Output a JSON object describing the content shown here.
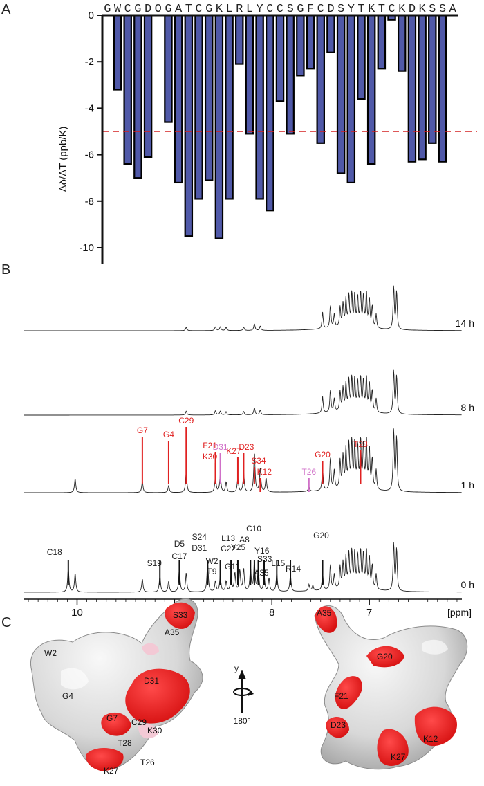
{
  "panels": {
    "a": "A",
    "b": "B",
    "c": "C"
  },
  "chart_data": [
    {
      "type": "bar",
      "panel": "A",
      "ylabel": "Δδ/ΔT (ppb/K)",
      "ylim": [
        -10,
        0
      ],
      "yticks": [
        0,
        -2,
        -4,
        -6,
        -8,
        -10
      ],
      "sequence": [
        "G",
        "W",
        "C",
        "G",
        "D",
        "O",
        "G",
        "A",
        "T",
        "C",
        "G",
        "K",
        "L",
        "R",
        "L",
        "Y",
        "C",
        "C",
        "S",
        "G",
        "F",
        "C",
        "D",
        "S",
        "Y",
        "T",
        "K",
        "T",
        "C",
        "K",
        "D",
        "K",
        "S",
        "S",
        "A"
      ],
      "highlight_residue": "S",
      "highlight_color": "#d42020",
      "values": [
        null,
        -3.2,
        -6.4,
        -7.0,
        -6.1,
        null,
        -4.6,
        -7.2,
        -9.5,
        -7.9,
        -7.1,
        -9.6,
        -7.9,
        -2.1,
        -5.1,
        -7.9,
        -8.4,
        -3.7,
        -5.1,
        -2.6,
        -2.3,
        -5.5,
        -1.6,
        -6.8,
        -7.2,
        -3.6,
        -6.4,
        -2.3,
        -0.2,
        -2.4,
        -6.3,
        -6.2,
        -5.5,
        -6.3,
        null
      ],
      "threshold": -5,
      "bar_color": "#5059a8",
      "threshold_color": "#d42020"
    },
    {
      "type": "line",
      "panel": "B",
      "xlabel": "[ppm]",
      "xlim": [
        10.55,
        6.05
      ],
      "xticks": [
        "10",
        "9",
        "8",
        "7"
      ],
      "traces": [
        {
          "name": "14 h",
          "peaks": [
            [
              8.88,
              0.07
            ],
            [
              8.58,
              0.08
            ],
            [
              8.53,
              0.08
            ],
            [
              8.47,
              0.07
            ],
            [
              8.29,
              0.07
            ],
            [
              8.18,
              0.14
            ],
            [
              8.12,
              0.09
            ]
          ]
        },
        {
          "name": "8 h",
          "peaks": [
            [
              8.88,
              0.08
            ],
            [
              8.58,
              0.09
            ],
            [
              8.53,
              0.08
            ],
            [
              8.47,
              0.07
            ],
            [
              8.29,
              0.07
            ],
            [
              8.18,
              0.15
            ],
            [
              8.12,
              0.1
            ]
          ]
        },
        {
          "name": "1 h",
          "peaks": [
            [
              10.02,
              0.2
            ],
            [
              9.33,
              0.16
            ],
            [
              9.06,
              0.1
            ],
            [
              8.88,
              0.3
            ],
            [
              8.58,
              0.23
            ],
            [
              8.53,
              0.25
            ],
            [
              8.47,
              0.15
            ],
            [
              8.35,
              0.2
            ],
            [
              8.29,
              0.28
            ],
            [
              8.18,
              0.58
            ],
            [
              8.12,
              0.35
            ],
            [
              8.06,
              0.2
            ],
            [
              7.62,
              0.07
            ]
          ]
        },
        {
          "name": "0 h",
          "peaks": [
            [
              10.09,
              0.45
            ],
            [
              10.02,
              0.35
            ],
            [
              9.33,
              0.25
            ],
            [
              9.15,
              0.3
            ],
            [
              9.06,
              0.2
            ],
            [
              8.95,
              0.45
            ],
            [
              8.88,
              0.35
            ],
            [
              8.66,
              0.58
            ],
            [
              8.58,
              0.2
            ],
            [
              8.53,
              0.3
            ],
            [
              8.47,
              0.2
            ],
            [
              8.42,
              0.3
            ],
            [
              8.38,
              0.35
            ],
            [
              8.33,
              0.4
            ],
            [
              8.29,
              0.42
            ],
            [
              8.22,
              0.45
            ],
            [
              8.18,
              0.55
            ],
            [
              8.14,
              0.45
            ],
            [
              8.08,
              0.3
            ],
            [
              8.03,
              0.25
            ],
            [
              7.95,
              0.35
            ],
            [
              7.81,
              0.32
            ],
            [
              7.62,
              0.12
            ],
            [
              7.58,
              0.1
            ]
          ]
        }
      ],
      "aromatic_peaks": [
        [
          7.48,
          0.38
        ],
        [
          7.4,
          0.52
        ],
        [
          7.36,
          0.3
        ],
        [
          7.3,
          0.45
        ],
        [
          7.27,
          0.52
        ],
        [
          7.24,
          0.62
        ],
        [
          7.21,
          0.7
        ],
        [
          7.18,
          0.75
        ],
        [
          7.15,
          0.72
        ],
        [
          7.12,
          0.68
        ],
        [
          7.09,
          0.78
        ],
        [
          7.06,
          0.72
        ],
        [
          7.03,
          0.8
        ],
        [
          7.0,
          0.66
        ],
        [
          6.97,
          0.5
        ],
        [
          6.93,
          0.32
        ],
        [
          6.75,
          1.0
        ],
        [
          6.72,
          0.88
        ]
      ],
      "annotations_0h": [
        {
          "label": "C18",
          "ppm": 10.09
        },
        {
          "label": "S19",
          "ppm": 9.15
        },
        {
          "label": "D5",
          "ppm": 8.95
        },
        {
          "label": "C17",
          "ppm": 8.95
        },
        {
          "label": "S24",
          "ppm": 8.66
        },
        {
          "label": "D31",
          "ppm": 8.66
        },
        {
          "label": "W2",
          "ppm": 8.53
        },
        {
          "label": "T9",
          "ppm": 8.53
        },
        {
          "label": "L13",
          "ppm": 8.42
        },
        {
          "label": "C22",
          "ppm": 8.42
        },
        {
          "label": "G11",
          "ppm": 8.35
        },
        {
          "label": "C10",
          "ppm": 8.2
        },
        {
          "label": "A8",
          "ppm": 8.24
        },
        {
          "label": "Y16",
          "ppm": 8.16
        },
        {
          "label": "Y25",
          "ppm": 8.29
        },
        {
          "label": "S33",
          "ppm": 8.16
        },
        {
          "label": "A35",
          "ppm": 8.08
        },
        {
          "label": "L15",
          "ppm": 7.95
        },
        {
          "label": "R14",
          "ppm": 7.81
        },
        {
          "label": "G20",
          "ppm": 7.48
        }
      ],
      "annotations_1h": [
        {
          "label": "G7",
          "ppm": 9.33,
          "color": "#e02020"
        },
        {
          "label": "G4",
          "ppm": 9.06,
          "color": "#e02020"
        },
        {
          "label": "C29",
          "ppm": 8.88,
          "color": "#e02020"
        },
        {
          "label": "F21",
          "ppm": 8.58,
          "color": "#e02020"
        },
        {
          "label": "K30",
          "ppm": 8.58,
          "color": "#e02020"
        },
        {
          "label": "D31",
          "ppm": 8.53,
          "color": "#d070c8"
        },
        {
          "label": "K27",
          "ppm": 8.35,
          "color": "#e02020"
        },
        {
          "label": "D23",
          "ppm": 8.29,
          "color": "#e02020"
        },
        {
          "label": "S34",
          "ppm": 8.18,
          "color": "#e02020"
        },
        {
          "label": "K12",
          "ppm": 8.12,
          "color": "#e02020"
        },
        {
          "label": "T26",
          "ppm": 7.62,
          "color": "#d070c8"
        },
        {
          "label": "G20",
          "ppm": 7.48,
          "color": "#e02020"
        },
        {
          "label": "T28",
          "ppm": 7.09,
          "color": "#e02020"
        }
      ]
    }
  ],
  "structure": {
    "rotation_label": "180°",
    "axis_label": "y",
    "left_labels": [
      "A35",
      "S33",
      "W2",
      "D31",
      "G4",
      "G7",
      "C29",
      "K30",
      "T28",
      "T26",
      "K27"
    ],
    "right_labels": [
      "A35",
      "G20",
      "F21",
      "D23",
      "K12",
      "K27"
    ]
  }
}
